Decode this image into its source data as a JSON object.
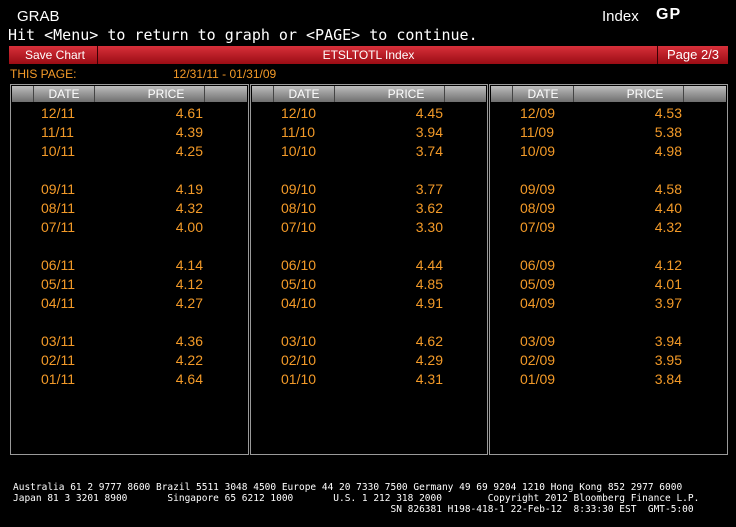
{
  "header": {
    "grab": "GRAB",
    "index_label": "Index",
    "function": "GP",
    "hint": "Hit <Menu> to return to graph or <PAGE> to continue."
  },
  "toolbar": {
    "save_chart": "Save Chart",
    "ticker": "ETSLTOTL Index",
    "page": "Page 2/3"
  },
  "range": {
    "label": "THIS PAGE:",
    "dates": "12/31/11 - 01/31/09"
  },
  "table": {
    "headers": {
      "date": "DATE",
      "price": "PRICE"
    },
    "columns": [
      {
        "rows": [
          {
            "date": "12/11",
            "price": "4.61"
          },
          {
            "date": "11/11",
            "price": "4.39"
          },
          {
            "date": "10/11",
            "price": "4.25"
          },
          {
            "date": "09/11",
            "price": "4.19"
          },
          {
            "date": "08/11",
            "price": "4.32"
          },
          {
            "date": "07/11",
            "price": "4.00"
          },
          {
            "date": "06/11",
            "price": "4.14"
          },
          {
            "date": "05/11",
            "price": "4.12"
          },
          {
            "date": "04/11",
            "price": "4.27"
          },
          {
            "date": "03/11",
            "price": "4.36"
          },
          {
            "date": "02/11",
            "price": "4.22"
          },
          {
            "date": "01/11",
            "price": "4.64"
          }
        ]
      },
      {
        "rows": [
          {
            "date": "12/10",
            "price": "4.45"
          },
          {
            "date": "11/10",
            "price": "3.94"
          },
          {
            "date": "10/10",
            "price": "3.74"
          },
          {
            "date": "09/10",
            "price": "3.77"
          },
          {
            "date": "08/10",
            "price": "3.62"
          },
          {
            "date": "07/10",
            "price": "3.30"
          },
          {
            "date": "06/10",
            "price": "4.44"
          },
          {
            "date": "05/10",
            "price": "4.85"
          },
          {
            "date": "04/10",
            "price": "4.91"
          },
          {
            "date": "03/10",
            "price": "4.62"
          },
          {
            "date": "02/10",
            "price": "4.29"
          },
          {
            "date": "01/10",
            "price": "4.31"
          }
        ]
      },
      {
        "rows": [
          {
            "date": "12/09",
            "price": "4.53"
          },
          {
            "date": "11/09",
            "price": "5.38"
          },
          {
            "date": "10/09",
            "price": "4.98"
          },
          {
            "date": "09/09",
            "price": "4.58"
          },
          {
            "date": "08/09",
            "price": "4.40"
          },
          {
            "date": "07/09",
            "price": "4.32"
          },
          {
            "date": "06/09",
            "price": "4.12"
          },
          {
            "date": "05/09",
            "price": "4.01"
          },
          {
            "date": "04/09",
            "price": "3.97"
          },
          {
            "date": "03/09",
            "price": "3.94"
          },
          {
            "date": "02/09",
            "price": "3.95"
          },
          {
            "date": "01/09",
            "price": "3.84"
          }
        ]
      }
    ]
  },
  "footer": {
    "line1": "Australia 61 2 9777 8600 Brazil 5511 3048 4500 Europe 44 20 7330 7500 Germany 49 69 9204 1210 Hong Kong 852 2977 6000",
    "line2": "Japan 81 3 3201 8900       Singapore 65 6212 1000       U.S. 1 212 318 2000        Copyright 2012 Bloomberg Finance L.P.",
    "line3": "                                                                  SN 826381 H198-418-1 22-Feb-12  8:33:30 EST  GMT-5:00"
  }
}
